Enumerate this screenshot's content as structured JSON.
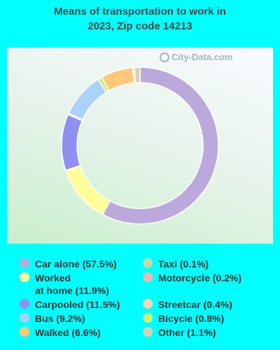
{
  "title_line1": "Means of transportation to work in",
  "title_line2": "2023, Zip code 14213",
  "watermark": "City-Data.com",
  "chart_data": {
    "type": "pie",
    "variant": "donut",
    "title": "Means of transportation to work in 2023, Zip code 14213",
    "start": "top",
    "direction": "clockwise",
    "slices": [
      {
        "label": "Car alone",
        "value": 57.5,
        "color": "#bca9dc"
      },
      {
        "label": "Worked at home",
        "value": 11.9,
        "color": "#ffff99"
      },
      {
        "label": "Carpooled",
        "value": 11.5,
        "color": "#9090f0"
      },
      {
        "label": "Taxi",
        "value": 0.1,
        "color": "#c8d8a8"
      },
      {
        "label": "Motorcycle",
        "value": 0.2,
        "color": "#f4b6ae"
      },
      {
        "label": "Bus",
        "value": 9.2,
        "color": "#acd2fa"
      },
      {
        "label": "Bicycle",
        "value": 0.8,
        "color": "#ccf07a"
      },
      {
        "label": "Walked",
        "value": 6.6,
        "color": "#ffc878"
      },
      {
        "label": "Streetcar",
        "value": 0.4,
        "color": "#fad6ae"
      },
      {
        "label": "Other",
        "value": 1.1,
        "color": "#d8d0b0"
      }
    ]
  },
  "legend": {
    "left": [
      {
        "lines": [
          "Car alone (57.5%)"
        ],
        "color": "#bca9dc"
      },
      {
        "lines": [
          "Worked",
          "at home (11.9%)"
        ],
        "color": "#ffff99"
      },
      {
        "lines": [
          "Carpooled (11.5%)"
        ],
        "color": "#9090f0"
      },
      {
        "lines": [
          "Bus (9.2%)"
        ],
        "color": "#acd2fa"
      },
      {
        "lines": [
          "Walked (6.6%)"
        ],
        "color": "#ffc878"
      }
    ],
    "right": [
      {
        "lines": [
          "Taxi (0.1%)"
        ],
        "color": "#c8d8a8"
      },
      {
        "lines": [
          "Motorcycle (0.2%)"
        ],
        "color": "#f4b6ae"
      },
      {
        "lines": [
          "Streetcar (0.4%)"
        ],
        "color": "#fad6ae"
      },
      {
        "lines": [
          "Bicycle (0.8%)"
        ],
        "color": "#ccf07a"
      },
      {
        "lines": [
          "Other (1.1%)"
        ],
        "color": "#d8d0b0"
      }
    ]
  }
}
